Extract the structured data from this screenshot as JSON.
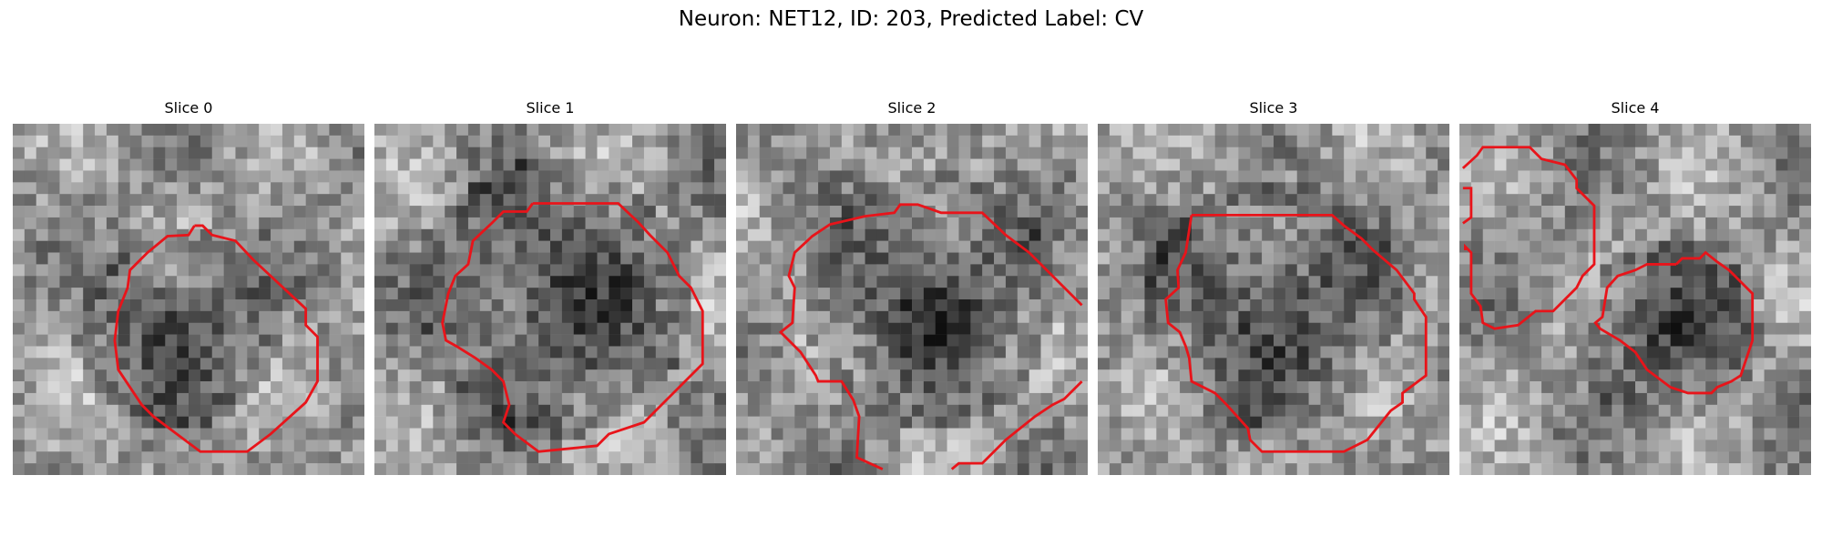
{
  "figure": {
    "title": "Neuron: NET12, ID: 203, Predicted Label: CV"
  },
  "slices": [
    {
      "title": "Slice 0",
      "seed": 11,
      "dark_blob": [
        0.47,
        0.58,
        0.23
      ]
    },
    {
      "title": "Slice 1",
      "seed": 23,
      "dark_blob": [
        0.5,
        0.5,
        0.34
      ]
    },
    {
      "title": "Slice 2",
      "seed": 37,
      "dark_blob": [
        0.55,
        0.5,
        0.3
      ]
    },
    {
      "title": "Slice 3",
      "seed": 41,
      "dark_blob": [
        0.5,
        0.52,
        0.3
      ]
    },
    {
      "title": "Slice 4",
      "seed": 53,
      "dark_blob": [
        0.6,
        0.6,
        0.2
      ]
    }
  ],
  "colors": {
    "contour": "#e8141a",
    "background": "#ffffff"
  }
}
